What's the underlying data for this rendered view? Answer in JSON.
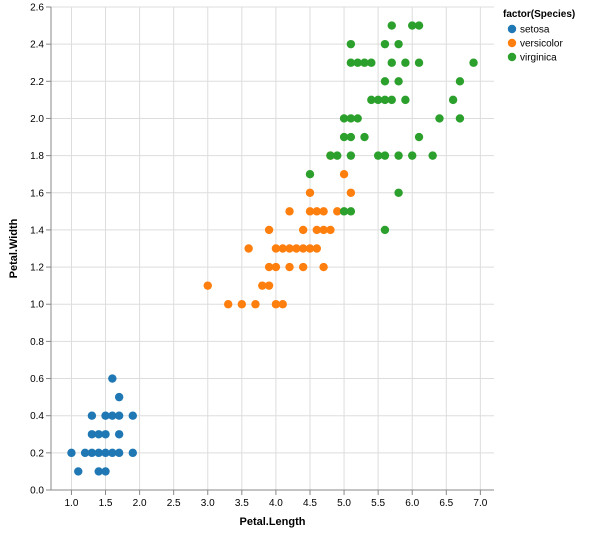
{
  "chart_data": {
    "type": "scatter",
    "xlabel": "Petal.Length",
    "ylabel": "Petal.Width",
    "xlim": [
      0.7,
      7.2
    ],
    "ylim": [
      0,
      2.6
    ],
    "x_ticks": [
      "1.0",
      "1.5",
      "2.0",
      "2.5",
      "3.0",
      "3.5",
      "4.0",
      "4.5",
      "5.0",
      "5.5",
      "6.0",
      "6.5",
      "7.0"
    ],
    "x_tick_values": [
      1.0,
      1.5,
      2.0,
      2.5,
      3.0,
      3.5,
      4.0,
      4.5,
      5.0,
      5.5,
      6.0,
      6.5,
      7.0
    ],
    "y_ticks": [
      "0.0",
      "0.2",
      "0.4",
      "0.6",
      "0.8",
      "1.0",
      "1.2",
      "1.4",
      "1.6",
      "1.8",
      "2.0",
      "2.2",
      "2.4",
      "2.6"
    ],
    "y_tick_values": [
      0.0,
      0.2,
      0.4,
      0.6,
      0.8,
      1.0,
      1.2,
      1.4,
      1.6,
      1.8,
      2.0,
      2.2,
      2.4,
      2.6
    ],
    "grid": true,
    "legend": {
      "title": "factor(Species)",
      "position": "top-right"
    },
    "series": [
      {
        "name": "setosa",
        "color": "#1f77b4",
        "points": [
          [
            1.0,
            0.2
          ],
          [
            1.1,
            0.1
          ],
          [
            1.2,
            0.2
          ],
          [
            1.3,
            0.2
          ],
          [
            1.3,
            0.3
          ],
          [
            1.3,
            0.4
          ],
          [
            1.4,
            0.1
          ],
          [
            1.4,
            0.2
          ],
          [
            1.4,
            0.3
          ],
          [
            1.5,
            0.1
          ],
          [
            1.5,
            0.2
          ],
          [
            1.5,
            0.3
          ],
          [
            1.5,
            0.4
          ],
          [
            1.6,
            0.2
          ],
          [
            1.6,
            0.4
          ],
          [
            1.6,
            0.6
          ],
          [
            1.7,
            0.2
          ],
          [
            1.7,
            0.3
          ],
          [
            1.7,
            0.4
          ],
          [
            1.7,
            0.5
          ],
          [
            1.9,
            0.2
          ],
          [
            1.9,
            0.4
          ]
        ]
      },
      {
        "name": "versicolor",
        "color": "#ff7f0e",
        "points": [
          [
            3.0,
            1.1
          ],
          [
            3.3,
            1.0
          ],
          [
            3.5,
            1.0
          ],
          [
            3.6,
            1.3
          ],
          [
            3.7,
            1.0
          ],
          [
            3.8,
            1.1
          ],
          [
            3.9,
            1.1
          ],
          [
            3.9,
            1.2
          ],
          [
            3.9,
            1.4
          ],
          [
            4.0,
            1.0
          ],
          [
            4.0,
            1.2
          ],
          [
            4.0,
            1.3
          ],
          [
            4.1,
            1.0
          ],
          [
            4.1,
            1.3
          ],
          [
            4.2,
            1.2
          ],
          [
            4.2,
            1.3
          ],
          [
            4.2,
            1.5
          ],
          [
            4.3,
            1.3
          ],
          [
            4.4,
            1.2
          ],
          [
            4.4,
            1.3
          ],
          [
            4.4,
            1.4
          ],
          [
            4.5,
            1.3
          ],
          [
            4.5,
            1.5
          ],
          [
            4.5,
            1.6
          ],
          [
            4.6,
            1.3
          ],
          [
            4.6,
            1.4
          ],
          [
            4.6,
            1.5
          ],
          [
            4.7,
            1.2
          ],
          [
            4.7,
            1.4
          ],
          [
            4.7,
            1.5
          ],
          [
            4.8,
            1.4
          ],
          [
            4.8,
            1.8
          ],
          [
            4.9,
            1.5
          ],
          [
            5.0,
            1.7
          ],
          [
            5.1,
            1.6
          ]
        ]
      },
      {
        "name": "virginica",
        "color": "#2ca02c",
        "points": [
          [
            4.5,
            1.7
          ],
          [
            4.8,
            1.8
          ],
          [
            4.9,
            1.8
          ],
          [
            5.0,
            1.5
          ],
          [
            5.0,
            1.9
          ],
          [
            5.0,
            2.0
          ],
          [
            5.1,
            1.5
          ],
          [
            5.1,
            1.8
          ],
          [
            5.1,
            1.9
          ],
          [
            5.1,
            2.0
          ],
          [
            5.1,
            2.3
          ],
          [
            5.1,
            2.4
          ],
          [
            5.2,
            2.0
          ],
          [
            5.2,
            2.3
          ],
          [
            5.3,
            1.9
          ],
          [
            5.3,
            2.3
          ],
          [
            5.4,
            2.1
          ],
          [
            5.4,
            2.3
          ],
          [
            5.5,
            1.8
          ],
          [
            5.5,
            2.1
          ],
          [
            5.6,
            1.4
          ],
          [
            5.6,
            1.8
          ],
          [
            5.6,
            2.1
          ],
          [
            5.6,
            2.2
          ],
          [
            5.6,
            2.4
          ],
          [
            5.7,
            2.1
          ],
          [
            5.7,
            2.3
          ],
          [
            5.7,
            2.5
          ],
          [
            5.8,
            1.6
          ],
          [
            5.8,
            1.8
          ],
          [
            5.8,
            2.2
          ],
          [
            5.8,
            2.4
          ],
          [
            5.9,
            2.1
          ],
          [
            5.9,
            2.3
          ],
          [
            6.0,
            1.8
          ],
          [
            6.0,
            2.5
          ],
          [
            6.1,
            1.9
          ],
          [
            6.1,
            2.3
          ],
          [
            6.1,
            2.5
          ],
          [
            6.3,
            1.8
          ],
          [
            6.4,
            2.0
          ],
          [
            6.6,
            2.1
          ],
          [
            6.7,
            2.0
          ],
          [
            6.7,
            2.2
          ],
          [
            6.9,
            2.3
          ]
        ]
      }
    ]
  }
}
